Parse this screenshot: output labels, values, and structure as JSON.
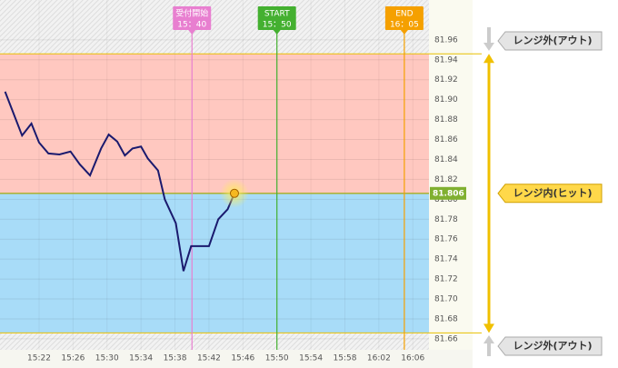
{
  "chart_data": {
    "type": "line",
    "x": [
      918.0,
      920.0,
      921.1,
      922.0,
      923.1,
      924.4,
      925.7,
      926.8,
      928.0,
      929.3,
      930.2,
      931.2,
      932.1,
      933.0,
      934.0,
      934.8,
      936.0,
      936.8,
      938.1,
      939.0,
      939.9,
      942.0,
      943.1,
      944.2,
      945.0
    ],
    "series": [
      {
        "color": "#1a1a6e",
        "values": [
          81.908,
          81.864,
          81.876,
          81.857,
          81.846,
          81.845,
          81.848,
          81.835,
          81.824,
          81.851,
          81.865,
          81.858,
          81.844,
          81.851,
          81.853,
          81.841,
          81.829,
          81.8,
          81.776,
          81.728,
          81.753,
          81.753,
          81.78,
          81.79,
          81.806
        ]
      }
    ],
    "xlim": [
      917.4,
      967.9
    ],
    "xticks": [
      {
        "value": 922,
        "label": "15:22"
      },
      {
        "value": 926,
        "label": "15:26"
      },
      {
        "value": 930,
        "label": "15:30"
      },
      {
        "value": 934,
        "label": "15:34"
      },
      {
        "value": 938,
        "label": "15:38"
      },
      {
        "value": 942,
        "label": "15:42"
      },
      {
        "value": 946,
        "label": "15:46"
      },
      {
        "value": 950,
        "label": "15:50"
      },
      {
        "value": 954,
        "label": "15:54"
      },
      {
        "value": 958,
        "label": "15:58"
      },
      {
        "value": 962,
        "label": "16:02"
      },
      {
        "value": 966,
        "label": "16:06"
      }
    ],
    "ylim": [
      81.649,
      82.0
    ],
    "yticks": [
      81.66,
      81.68,
      {
        "value": 81.7,
        "label": "81.70"
      },
      81.72,
      81.74,
      81.76,
      81.78,
      {
        "value": 81.8,
        "label": "81.80"
      },
      81.82,
      81.84,
      81.86,
      81.88,
      {
        "value": 81.9,
        "label": "81.90"
      },
      81.92,
      81.94,
      81.96
    ],
    "grid": true,
    "current": 81.806,
    "range": {
      "upper": 81.946,
      "lower": 81.666,
      "upper_color": "#ffc8c0",
      "lower_color": "#a8dcf8"
    },
    "markers": [
      {
        "label": "受付開始",
        "time": {
          "value": 940,
          "label": "15：40"
        },
        "color": "#e87fd0"
      },
      {
        "label": "START",
        "time": {
          "value": 950,
          "label": "15：50"
        },
        "color": "#44b030"
      },
      {
        "label": "END",
        "time": {
          "value": 965,
          "label": "16：05"
        },
        "color": "#f5a000"
      }
    ],
    "annotations": {
      "out_top": "レンジ外(アウト)",
      "in": "レンジ内(ヒット)",
      "out_bottom": "レンジ外(アウト)"
    }
  }
}
